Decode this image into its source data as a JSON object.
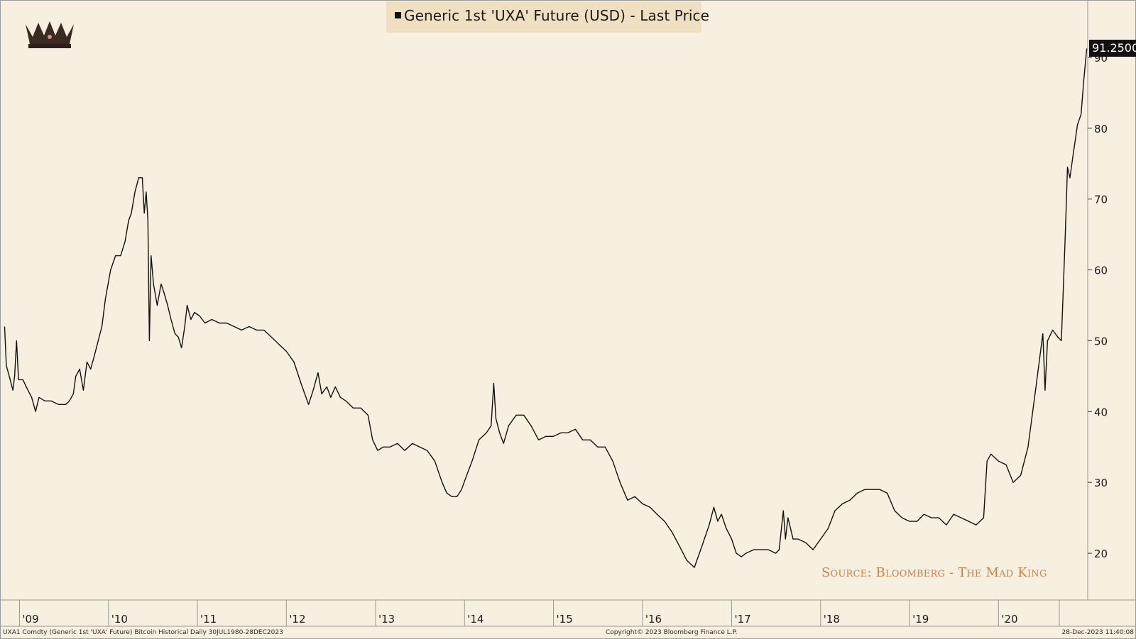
{
  "chart_data": {
    "type": "line",
    "title": "Generic 1st 'UXA' Future (USD) - Last Price",
    "series": [
      {
        "name": "Generic 1st 'UXA' Future (USD) - Last Price",
        "last_value_label": "91.2500",
        "points": [
          [
            "2008-11-01",
            52
          ],
          [
            "2008-11-08",
            46.5
          ],
          [
            "2008-11-20",
            45
          ],
          [
            "2008-12-05",
            43
          ],
          [
            "2008-12-12",
            45
          ],
          [
            "2008-12-20",
            50
          ],
          [
            "2008-12-28",
            44.5
          ],
          [
            "2009-01-15",
            44.5
          ],
          [
            "2009-02-05",
            43
          ],
          [
            "2009-02-20",
            42
          ],
          [
            "2009-03-08",
            40
          ],
          [
            "2009-03-22",
            42
          ],
          [
            "2009-04-15",
            41.5
          ],
          [
            "2009-05-10",
            41.5
          ],
          [
            "2009-06-10",
            41
          ],
          [
            "2009-07-10",
            41
          ],
          [
            "2009-07-25",
            41.5
          ],
          [
            "2009-08-10",
            42.5
          ],
          [
            "2009-08-20",
            45
          ],
          [
            "2009-09-05",
            46
          ],
          [
            "2009-09-20",
            43
          ],
          [
            "2009-10-05",
            47
          ],
          [
            "2009-10-20",
            46
          ],
          [
            "2009-11-05",
            48
          ],
          [
            "2009-11-20",
            50
          ],
          [
            "2009-12-05",
            52
          ],
          [
            "2009-12-20",
            56
          ],
          [
            "2010-01-10",
            60
          ],
          [
            "2010-01-30",
            62
          ],
          [
            "2010-02-20",
            62
          ],
          [
            "2010-03-10",
            64
          ],
          [
            "2010-03-25",
            67
          ],
          [
            "2010-04-05",
            68
          ],
          [
            "2010-04-20",
            71
          ],
          [
            "2010-05-05",
            73
          ],
          [
            "2010-05-20",
            73
          ],
          [
            "2010-05-28",
            68
          ],
          [
            "2010-06-05",
            71
          ],
          [
            "2010-06-12",
            67
          ],
          [
            "2010-06-18",
            50
          ],
          [
            "2010-06-25",
            62
          ],
          [
            "2010-07-05",
            58
          ],
          [
            "2010-07-20",
            55
          ],
          [
            "2010-08-05",
            58
          ],
          [
            "2010-08-15",
            57
          ],
          [
            "2010-09-01",
            55
          ],
          [
            "2010-09-15",
            53
          ],
          [
            "2010-10-01",
            51
          ],
          [
            "2010-10-15",
            50.5
          ],
          [
            "2010-10-28",
            49
          ],
          [
            "2010-11-10",
            52
          ],
          [
            "2010-11-20",
            55
          ],
          [
            "2010-12-05",
            53
          ],
          [
            "2010-12-20",
            54
          ],
          [
            "2011-01-10",
            53.5
          ],
          [
            "2011-02-01",
            52.5
          ],
          [
            "2011-03-01",
            53
          ],
          [
            "2011-04-01",
            52.5
          ],
          [
            "2011-05-01",
            52.5
          ],
          [
            "2011-06-01",
            52
          ],
          [
            "2011-07-01",
            51.5
          ],
          [
            "2011-08-01",
            52
          ],
          [
            "2011-09-01",
            51.5
          ],
          [
            "2011-10-01",
            51.5
          ],
          [
            "2011-11-01",
            50.5
          ],
          [
            "2011-12-01",
            49.5
          ],
          [
            "2012-01-01",
            48.5
          ],
          [
            "2012-02-01",
            47
          ],
          [
            "2012-03-01",
            44
          ],
          [
            "2012-04-01",
            41
          ],
          [
            "2012-04-20",
            43
          ],
          [
            "2012-05-10",
            45.5
          ],
          [
            "2012-05-25",
            42.5
          ],
          [
            "2012-06-15",
            43.5
          ],
          [
            "2012-07-01",
            42
          ],
          [
            "2012-07-20",
            43.5
          ],
          [
            "2012-08-10",
            42
          ],
          [
            "2012-09-01",
            41.5
          ],
          [
            "2012-10-01",
            40.5
          ],
          [
            "2012-11-01",
            40.5
          ],
          [
            "2012-12-01",
            39.5
          ],
          [
            "2012-12-20",
            36
          ],
          [
            "2013-01-10",
            34.5
          ],
          [
            "2013-02-01",
            35
          ],
          [
            "2013-03-01",
            35
          ],
          [
            "2013-04-01",
            35.5
          ],
          [
            "2013-05-01",
            34.5
          ],
          [
            "2013-06-01",
            35.5
          ],
          [
            "2013-07-01",
            35
          ],
          [
            "2013-08-01",
            34.5
          ],
          [
            "2013-09-01",
            33
          ],
          [
            "2013-10-01",
            30
          ],
          [
            "2013-10-20",
            28.5
          ],
          [
            "2013-11-10",
            28
          ],
          [
            "2013-12-01",
            28
          ],
          [
            "2013-12-20",
            29
          ],
          [
            "2014-01-10",
            31
          ],
          [
            "2014-02-01",
            33
          ],
          [
            "2014-03-01",
            36
          ],
          [
            "2014-04-01",
            37
          ],
          [
            "2014-04-20",
            38
          ],
          [
            "2014-05-01",
            44
          ],
          [
            "2014-05-10",
            39
          ],
          [
            "2014-05-25",
            37
          ],
          [
            "2014-06-10",
            35.5
          ],
          [
            "2014-07-01",
            38
          ],
          [
            "2014-08-01",
            39.5
          ],
          [
            "2014-09-01",
            39.5
          ],
          [
            "2014-10-01",
            38
          ],
          [
            "2014-11-01",
            36
          ],
          [
            "2014-12-01",
            36.5
          ],
          [
            "2015-01-01",
            36.5
          ],
          [
            "2015-02-01",
            37
          ],
          [
            "2015-03-01",
            37
          ],
          [
            "2015-04-01",
            37.5
          ],
          [
            "2015-05-01",
            36
          ],
          [
            "2015-06-01",
            36
          ],
          [
            "2015-07-01",
            35
          ],
          [
            "2015-08-01",
            35
          ],
          [
            "2015-09-01",
            33
          ],
          [
            "2015-10-01",
            30
          ],
          [
            "2015-11-01",
            27.5
          ],
          [
            "2015-12-01",
            28
          ],
          [
            "2016-01-01",
            27
          ],
          [
            "2016-02-01",
            26.5
          ],
          [
            "2016-03-01",
            25.5
          ],
          [
            "2016-04-01",
            24.5
          ],
          [
            "2016-05-01",
            23
          ],
          [
            "2016-06-01",
            21
          ],
          [
            "2016-07-01",
            19
          ],
          [
            "2016-08-01",
            18
          ],
          [
            "2016-09-01",
            21
          ],
          [
            "2016-10-01",
            24
          ],
          [
            "2016-10-20",
            26.5
          ],
          [
            "2016-11-05",
            24.5
          ],
          [
            "2016-11-20",
            25.5
          ],
          [
            "2016-12-10",
            23.5
          ],
          [
            "2017-01-01",
            22
          ],
          [
            "2017-01-20",
            20
          ],
          [
            "2017-02-10",
            19.5
          ],
          [
            "2017-03-01",
            20
          ],
          [
            "2017-04-01",
            20.5
          ],
          [
            "2017-05-01",
            20.5
          ],
          [
            "2017-06-01",
            20.5
          ],
          [
            "2017-07-01",
            20
          ],
          [
            "2017-07-15",
            20.5
          ],
          [
            "2017-08-01",
            26
          ],
          [
            "2017-08-10",
            22
          ],
          [
            "2017-08-20",
            25
          ],
          [
            "2017-09-10",
            22
          ],
          [
            "2017-10-01",
            22
          ],
          [
            "2017-11-01",
            21.5
          ],
          [
            "2017-12-01",
            20.5
          ],
          [
            "2018-01-01",
            22
          ],
          [
            "2018-02-01",
            23.5
          ],
          [
            "2018-03-01",
            26
          ],
          [
            "2018-04-01",
            27
          ],
          [
            "2018-05-01",
            27.5
          ],
          [
            "2018-06-01",
            28.5
          ],
          [
            "2018-07-01",
            29
          ],
          [
            "2018-08-01",
            29
          ],
          [
            "2018-09-01",
            29
          ],
          [
            "2018-10-01",
            28.5
          ],
          [
            "2018-11-01",
            26
          ],
          [
            "2018-12-01",
            25
          ],
          [
            "2019-01-01",
            24.5
          ],
          [
            "2019-02-01",
            24.5
          ],
          [
            "2019-03-01",
            25.5
          ],
          [
            "2019-04-01",
            25
          ],
          [
            "2019-05-01",
            25
          ],
          [
            "2019-06-01",
            24
          ],
          [
            "2019-07-01",
            25.5
          ],
          [
            "2019-08-01",
            25
          ],
          [
            "2019-09-01",
            24.5
          ],
          [
            "2019-10-01",
            24
          ],
          [
            "2019-11-01",
            25
          ],
          [
            "2019-11-15",
            33
          ],
          [
            "2019-12-01",
            34
          ],
          [
            "2020-01-01",
            33
          ],
          [
            "2020-02-01",
            32.5
          ],
          [
            "2020-03-01",
            30
          ],
          [
            "2020-04-01",
            31
          ],
          [
            "2020-05-01",
            35
          ],
          [
            "2020-06-01",
            43
          ],
          [
            "2020-07-01",
            51
          ],
          [
            "2020-07-10",
            43
          ],
          [
            "2020-07-20",
            50
          ],
          [
            "2020-08-10",
            51.5
          ],
          [
            "2020-09-01",
            50.5
          ],
          [
            "2020-09-15",
            50
          ],
          [
            "2020-10-01",
            65
          ],
          [
            "2020-10-10",
            74.5
          ],
          [
            "2020-10-20",
            73
          ],
          [
            "2020-11-01",
            76
          ],
          [
            "2020-11-20",
            80.5
          ],
          [
            "2020-12-05",
            82
          ],
          [
            "2020-12-15",
            86.5
          ],
          [
            "2020-12-28",
            91.25
          ]
        ]
      }
    ],
    "ylabel": "",
    "ylim": [
      13.5,
      98
    ],
    "y_ticks": [
      "20",
      "30",
      "40",
      "50",
      "60",
      "70",
      "80",
      "90"
    ],
    "xlim": [
      "2008-10-16",
      "2021-01-01"
    ],
    "x_ticks": [
      "'09",
      "'10",
      "'11",
      "'12",
      "'13",
      "'14",
      "'15",
      "'16",
      "'17",
      "'18",
      "'19",
      "'20"
    ],
    "grid": false,
    "legend": "top-center",
    "line_color": "#111111",
    "background_color": "#f7efdf",
    "source_text": "Source: Bloomberg - The Mad King",
    "footer_left": "UXA1 Comdty (Generic 1st 'UXA' Future) Bitcoin Historical  Daily 30JUL1980-28DEC2023",
    "footer_center": "Copyright© 2023 Bloomberg Finance L.P.",
    "footer_right": "28-Dec-2023 11:40:08"
  }
}
